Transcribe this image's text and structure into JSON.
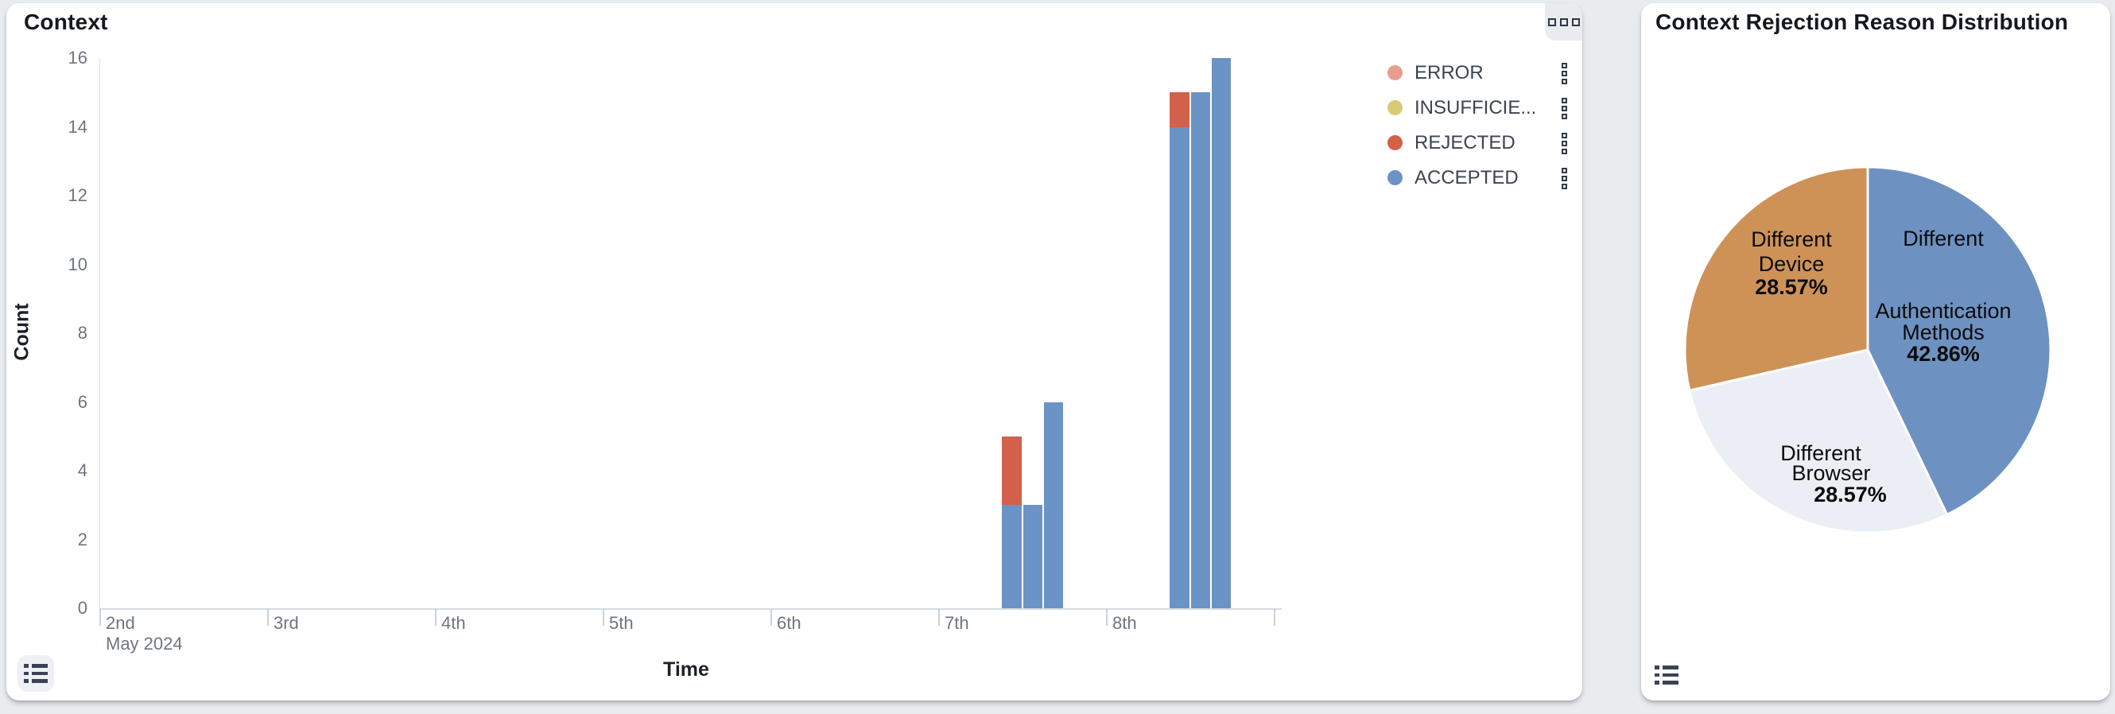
{
  "panels": {
    "context": {
      "title": "Context",
      "xlabel": "Time",
      "ylabel": "Count",
      "legend": [
        {
          "label": "ERROR",
          "color": "#e89d8e"
        },
        {
          "label": "INSUFFICIE...",
          "color": "#d9ca78"
        },
        {
          "label": "REJECTED",
          "color": "#d3604b"
        },
        {
          "label": "ACCEPTED",
          "color": "#6c93c5"
        }
      ],
      "icons": {
        "options": "grid-dots-icon",
        "bottom_left": "list-icon"
      }
    },
    "pie": {
      "title": "Context Rejection Reason Distribution",
      "icons": {
        "bottom_left": "list-icon"
      }
    }
  },
  "chart_data": [
    {
      "type": "bar",
      "title": "Context",
      "stacked": true,
      "xlabel": "Time",
      "ylabel": "Count",
      "ylim": [
        0,
        16
      ],
      "y_ticks": [
        0,
        2,
        4,
        6,
        8,
        10,
        12,
        14,
        16
      ],
      "x_tick_labels": [
        "2nd",
        "3rd",
        "4th",
        "5th",
        "6th",
        "7th",
        "8th"
      ],
      "x_axis_sub_label": "May 2024",
      "grid": false,
      "legend_position": "top-right",
      "colors": {
        "ERROR": "#e89d8e",
        "INSUFFICIENT": "#d9ca78",
        "REJECTED": "#d3604b",
        "ACCEPTED": "#6c93c5"
      },
      "slot_start_hours": [
        9,
        12,
        15
      ],
      "slot_span_hours": 3,
      "bars": [
        {
          "day": "7th",
          "day_index": 5,
          "slot": 0,
          "segments": {
            "ACCEPTED": 3,
            "REJECTED": 2
          }
        },
        {
          "day": "7th",
          "day_index": 5,
          "slot": 1,
          "segments": {
            "ACCEPTED": 3
          }
        },
        {
          "day": "7th",
          "day_index": 5,
          "slot": 2,
          "segments": {
            "ACCEPTED": 6
          }
        },
        {
          "day": "8th",
          "day_index": 6,
          "slot": 0,
          "segments": {
            "ACCEPTED": 14,
            "REJECTED": 1
          }
        },
        {
          "day": "8th",
          "day_index": 6,
          "slot": 1,
          "segments": {
            "ACCEPTED": 15
          }
        },
        {
          "day": "8th",
          "day_index": 6,
          "slot": 2,
          "segments": {
            "ACCEPTED": 16
          }
        }
      ]
    },
    {
      "type": "pie",
      "title": "Context Rejection Reason Distribution",
      "start_angle_deg": 0,
      "direction": "clockwise",
      "slices": [
        {
          "name": "Different Authentication Methods",
          "value_pct": 42.86,
          "pct_label": "42.86%",
          "color": "#6d92c1",
          "label_lines": [
            "Different",
            "Authentication",
            "Methods"
          ]
        },
        {
          "name": "Different Browser",
          "value_pct": 28.57,
          "pct_label": "28.57%",
          "color": "#ebeff5",
          "label_lines": [
            "Different",
            "Browser"
          ]
        },
        {
          "name": "Different Device",
          "value_pct": 28.57,
          "pct_label": "28.57%",
          "color": "#ce9257",
          "label_lines": [
            "Different",
            "Device"
          ]
        }
      ]
    }
  ]
}
